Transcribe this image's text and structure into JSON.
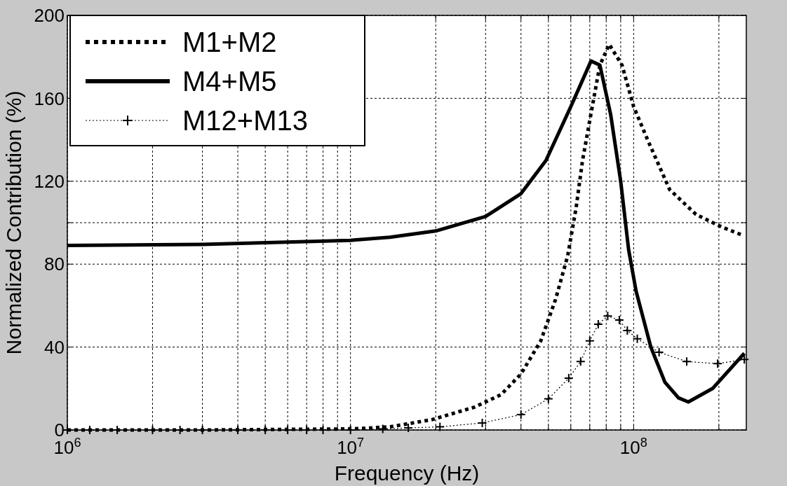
{
  "chart_data": {
    "type": "line",
    "xlabel": "Frequency (Hz)",
    "ylabel": "Normalized Contribution (%)",
    "log": "x",
    "xlim": [
      1000000,
      250000000
    ],
    "xticks": [
      {
        "value": 1000000,
        "label": "10$^{6}$"
      },
      {
        "value": 2000000,
        "label": null
      },
      {
        "value": 3000000,
        "label": null
      },
      {
        "value": 4000000,
        "label": null
      },
      {
        "value": 5000000,
        "label": null
      },
      {
        "value": 6000000,
        "label": null
      },
      {
        "value": 7000000,
        "label": null
      },
      {
        "value": 8000000,
        "label": null
      },
      {
        "value": 9000000,
        "label": null
      },
      {
        "value": 10000000,
        "label": "10$^{7}$"
      },
      {
        "value": 20000000,
        "label": null
      },
      {
        "value": 30000000,
        "label": null
      },
      {
        "value": 40000000,
        "label": null
      },
      {
        "value": 50000000,
        "label": null
      },
      {
        "value": 60000000,
        "label": null
      },
      {
        "value": 70000000,
        "label": null
      },
      {
        "value": 80000000,
        "label": null
      },
      {
        "value": 90000000,
        "label": null
      },
      {
        "value": 100000000,
        "label": "10$^{8}$"
      },
      {
        "value": 200000000,
        "label": null
      }
    ],
    "ylim": [
      0,
      200
    ],
    "yticks": [
      0,
      40,
      80,
      {
        "value": 100,
        "label": null
      },
      120,
      160,
      200
    ],
    "grid": true,
    "legend": "top left",
    "series": [
      {
        "name": "M1+M2",
        "color": "#000000",
        "line_style": "dotted",
        "marker": "none",
        "x": [
          1000000,
          3000000,
          10000000,
          13800000,
          19400000,
          27400000,
          34000000,
          40000000,
          47000000,
          53000000,
          58500000,
          62600000,
          66000000,
          71000000,
          76000000,
          82000000,
          91000000,
          100000000,
          112000000,
          134000000,
          166000000,
          204000000,
          242000000
        ],
        "values": [
          0,
          0,
          0.5,
          1.5,
          5,
          11,
          17,
          27,
          43,
          63,
          84,
          107,
          130,
          154,
          176,
          186,
          176,
          156,
          140,
          116,
          104,
          98,
          94
        ]
      },
      {
        "name": "M4+M5",
        "color": "#000000",
        "line_style": "solid",
        "marker": "none",
        "x": [
          1000000,
          3000000,
          10000000,
          13800000,
          20000000,
          30000000,
          40000000,
          49000000,
          60000000,
          70700000,
          76000000,
          83000000,
          90000000,
          96000000,
          102000000,
          115000000,
          129000000,
          144000000,
          156000000,
          190000000,
          246000000
        ],
        "values": [
          89,
          89.5,
          91.5,
          93,
          96,
          103,
          114,
          130,
          156,
          178,
          176,
          152,
          120,
          87,
          67,
          40,
          23,
          15.5,
          13.5,
          20,
          37
        ]
      },
      {
        "name": "M12+M13",
        "color": "#000000",
        "line_style": "dotted",
        "marker": "cross",
        "x": [
          1000000,
          1200000,
          1500000,
          2000000,
          2500000,
          3000000,
          4000000,
          5000000,
          6000000,
          7000000,
          8000000,
          10000000,
          13000000,
          16000000,
          20700000,
          29200000,
          40000000,
          50000000,
          59000000,
          65000000,
          70000000,
          75000000,
          81000000,
          89000000,
          95000000,
          103000000,
          123000000,
          154000000,
          198000000,
          246000000
        ],
        "values": [
          0,
          0,
          0,
          0,
          0,
          0,
          0,
          0,
          0,
          0,
          0,
          0,
          0.5,
          1,
          1.5,
          3.4,
          7.4,
          15,
          25,
          33,
          43,
          51,
          55,
          53,
          48,
          44,
          37.5,
          33,
          32,
          34
        ]
      }
    ]
  }
}
